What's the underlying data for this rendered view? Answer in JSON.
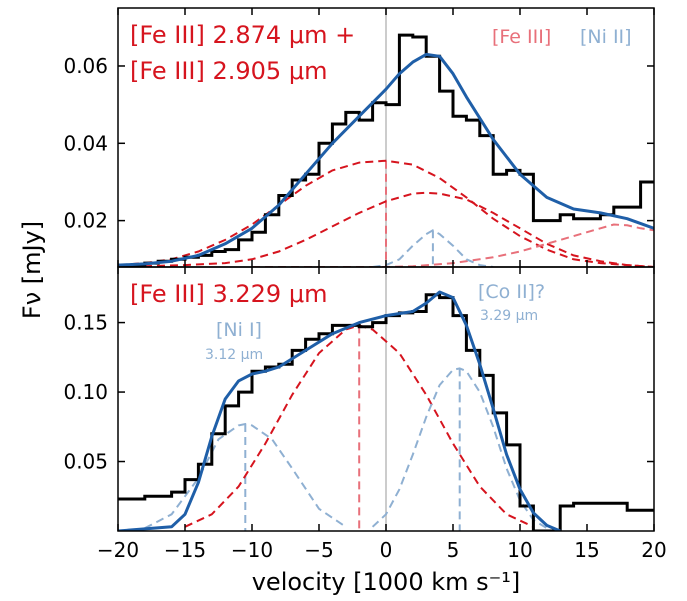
{
  "xlabel": "velocity [1000 km s⁻¹]",
  "ylabel": "Fν [mJy]",
  "xlim": [
    -20,
    20
  ],
  "xticks": [
    -20,
    -15,
    -10,
    -5,
    0,
    5,
    10,
    15,
    20
  ],
  "colors": {
    "data": "#000000",
    "fit": "#1f5fa8",
    "fe": "#d6141e",
    "fe_light": "#e8707a",
    "ni": "#8fb0d2",
    "zero_line": "#cccccc"
  },
  "chart_data": [
    {
      "type": "line",
      "panel": "top",
      "title": "",
      "annotations": [
        "[Fe III] 2.874 μm +",
        "[Fe III] 2.905 μm"
      ],
      "legend": {
        "position": "top-right",
        "entries": [
          {
            "label": "[Fe III]",
            "color": "#e8707a"
          },
          {
            "label": "[Ni II]",
            "color": "#8fb0d2"
          }
        ]
      },
      "ylim": [
        0.008,
        0.075
      ],
      "yticks": [
        0.02,
        0.04,
        0.06
      ],
      "ytick_labels": [
        "0.02",
        "0.04",
        "0.06"
      ],
      "series": [
        {
          "role": "data",
          "style": "steps",
          "x": [
            -20,
            -19,
            -18,
            -17,
            -16,
            -15,
            -14,
            -13,
            -12,
            -11,
            -10,
            -9,
            -8,
            -7,
            -6,
            -5,
            -4,
            -3,
            -2,
            -1,
            0,
            1,
            2,
            3,
            4,
            5,
            6,
            7,
            8,
            9,
            10,
            11,
            12,
            13,
            14,
            15,
            16,
            17,
            18,
            19,
            20
          ],
          "y": [
            0.0085,
            0.0085,
            0.009,
            0.0095,
            0.01,
            0.0105,
            0.011,
            0.012,
            0.0125,
            0.015,
            0.017,
            0.0215,
            0.0265,
            0.0305,
            0.032,
            0.04,
            0.045,
            0.048,
            0.046,
            0.0505,
            0.05,
            0.068,
            0.0675,
            0.0625,
            0.0535,
            0.047,
            0.046,
            0.042,
            0.032,
            0.033,
            0.032,
            0.02,
            0.02,
            0.0215,
            0.0205,
            0.0205,
            0.0215,
            0.0235,
            0.0235,
            0.03,
            0.03
          ]
        },
        {
          "role": "fit",
          "style": "solid",
          "x": [
            -20,
            -18,
            -16,
            -14,
            -12,
            -10,
            -8,
            -6,
            -4,
            -2,
            0,
            1,
            2,
            3,
            4,
            5,
            6,
            8,
            10,
            12,
            14,
            16,
            18,
            20
          ],
          "y": [
            0.0085,
            0.0088,
            0.0095,
            0.011,
            0.014,
            0.018,
            0.024,
            0.032,
            0.04,
            0.047,
            0.054,
            0.058,
            0.061,
            0.063,
            0.0625,
            0.058,
            0.052,
            0.041,
            0.032,
            0.026,
            0.023,
            0.022,
            0.0205,
            0.018
          ]
        },
        {
          "role": "component",
          "color": "fe",
          "style": "dashed",
          "x": [
            -20,
            -18,
            -16,
            -14,
            -12,
            -10,
            -8,
            -6,
            -4,
            -2,
            0,
            2,
            4,
            6,
            8,
            10,
            12,
            14,
            16,
            18,
            20
          ],
          "y": [
            0.0085,
            0.009,
            0.01,
            0.012,
            0.015,
            0.019,
            0.024,
            0.029,
            0.033,
            0.035,
            0.0355,
            0.0345,
            0.031,
            0.026,
            0.0205,
            0.016,
            0.0125,
            0.01,
            0.009,
            0.0085,
            0.008
          ]
        },
        {
          "role": "component",
          "color": "fe",
          "style": "dashed",
          "x": [
            -20,
            -15,
            -12,
            -10,
            -8,
            -6,
            -4,
            -2,
            0,
            2,
            3,
            4,
            6,
            8,
            10,
            12,
            14,
            16,
            18,
            20
          ],
          "y": [
            0.008,
            0.0085,
            0.009,
            0.01,
            0.012,
            0.015,
            0.0185,
            0.022,
            0.025,
            0.027,
            0.0272,
            0.027,
            0.0255,
            0.022,
            0.018,
            0.014,
            0.011,
            0.0095,
            0.0085,
            0.008
          ]
        },
        {
          "role": "component",
          "color": "fe_light",
          "style": "dashed",
          "x": [
            -10,
            -5,
            0,
            2,
            5,
            8,
            10,
            12,
            14,
            16,
            17,
            18,
            19,
            20
          ],
          "y": [
            0.008,
            0.008,
            0.008,
            0.0082,
            0.009,
            0.0105,
            0.012,
            0.014,
            0.016,
            0.018,
            0.019,
            0.0188,
            0.018,
            0.0175
          ]
        },
        {
          "role": "component",
          "color": "ni",
          "style": "dashed",
          "x": [
            -1,
            0,
            1,
            2,
            3,
            3.5,
            4,
            5,
            6,
            7,
            8
          ],
          "y": [
            0.008,
            0.0085,
            0.01,
            0.0135,
            0.0165,
            0.0175,
            0.0165,
            0.0135,
            0.01,
            0.0085,
            0.008
          ]
        }
      ],
      "dropdowns": [
        {
          "x": 0,
          "y": 0.0355,
          "color": "fe_light"
        },
        {
          "x": 3.5,
          "y": 0.0175,
          "color": "ni"
        }
      ]
    },
    {
      "type": "line",
      "panel": "bottom",
      "title": "",
      "annotations": [
        "[Fe III] 3.229 μm"
      ],
      "line_labels": [
        {
          "text": "[Ni I]",
          "sub": "3.12 μm",
          "color": "ni"
        },
        {
          "text": "[Co II]?",
          "sub": "3.29 μm",
          "color": "ni"
        }
      ],
      "ylim": [
        0.0,
        0.19
      ],
      "yticks": [
        0.05,
        0.1,
        0.15
      ],
      "ytick_labels": [
        "0.05",
        "0.10",
        "0.15"
      ],
      "series": [
        {
          "role": "data",
          "style": "steps",
          "x": [
            -20,
            -19,
            -18,
            -17,
            -16,
            -15,
            -14,
            -13,
            -12,
            -11,
            -10,
            -9,
            -8,
            -7,
            -6,
            -5,
            -4,
            -3,
            -2,
            -1,
            0,
            1,
            2,
            3,
            4,
            5,
            6,
            7,
            8,
            9,
            10,
            11,
            12,
            13,
            14,
            15,
            16,
            17,
            18,
            19,
            20
          ],
          "y": [
            0.023,
            0.023,
            0.025,
            0.025,
            0.028,
            0.037,
            0.048,
            0.07,
            0.09,
            0.1,
            0.115,
            0.118,
            0.12,
            0.13,
            0.138,
            0.142,
            0.148,
            0.148,
            0.147,
            0.15,
            0.155,
            0.157,
            0.158,
            0.17,
            0.168,
            0.155,
            0.13,
            0.112,
            0.085,
            0.062,
            0.018,
            0.0,
            0.0,
            0.018,
            0.02,
            0.02,
            0.02,
            0.02,
            0.015,
            0.015,
            0.015
          ]
        },
        {
          "role": "fit",
          "style": "solid",
          "x": [
            -20,
            -16,
            -15,
            -14,
            -13,
            -12,
            -11,
            -10,
            -9,
            -8,
            -6,
            -4,
            -2,
            0,
            2,
            3,
            4,
            5,
            6,
            7,
            8,
            9,
            10,
            11,
            12,
            13
          ],
          "y": [
            0.0,
            0.003,
            0.012,
            0.035,
            0.068,
            0.095,
            0.108,
            0.113,
            0.115,
            0.118,
            0.13,
            0.142,
            0.15,
            0.155,
            0.158,
            0.164,
            0.172,
            0.168,
            0.148,
            0.12,
            0.088,
            0.055,
            0.03,
            0.013,
            0.004,
            0.0
          ]
        },
        {
          "role": "component",
          "color": "fe",
          "style": "dashed",
          "x": [
            -15,
            -13,
            -11,
            -9,
            -7,
            -5,
            -3,
            -2,
            -1,
            1,
            3,
            5,
            7,
            9,
            11
          ],
          "y": [
            0.003,
            0.012,
            0.032,
            0.063,
            0.098,
            0.128,
            0.145,
            0.148,
            0.145,
            0.128,
            0.098,
            0.063,
            0.032,
            0.012,
            0.003
          ]
        },
        {
          "role": "component",
          "color": "ni",
          "style": "dashed",
          "x": [
            -18,
            -16,
            -14,
            -12.5,
            -11,
            -10.5,
            -10,
            -8.5,
            -7,
            -5,
            -3
          ],
          "y": [
            0.002,
            0.012,
            0.038,
            0.066,
            0.076,
            0.077,
            0.076,
            0.066,
            0.045,
            0.016,
            0.003
          ]
        },
        {
          "role": "component",
          "color": "ni",
          "style": "dashed",
          "x": [
            -1,
            0,
            1,
            2,
            3,
            4,
            5,
            5.5,
            6,
            7,
            8,
            9,
            10,
            11,
            12
          ],
          "y": [
            0.003,
            0.012,
            0.03,
            0.055,
            0.082,
            0.105,
            0.116,
            0.117,
            0.115,
            0.1,
            0.075,
            0.045,
            0.022,
            0.008,
            0.002
          ]
        }
      ],
      "dropdowns": [
        {
          "x": -10.5,
          "y": 0.077,
          "color": "ni"
        },
        {
          "x": -2,
          "y": 0.148,
          "color": "fe_light"
        },
        {
          "x": 5.5,
          "y": 0.117,
          "color": "ni"
        }
      ]
    }
  ]
}
